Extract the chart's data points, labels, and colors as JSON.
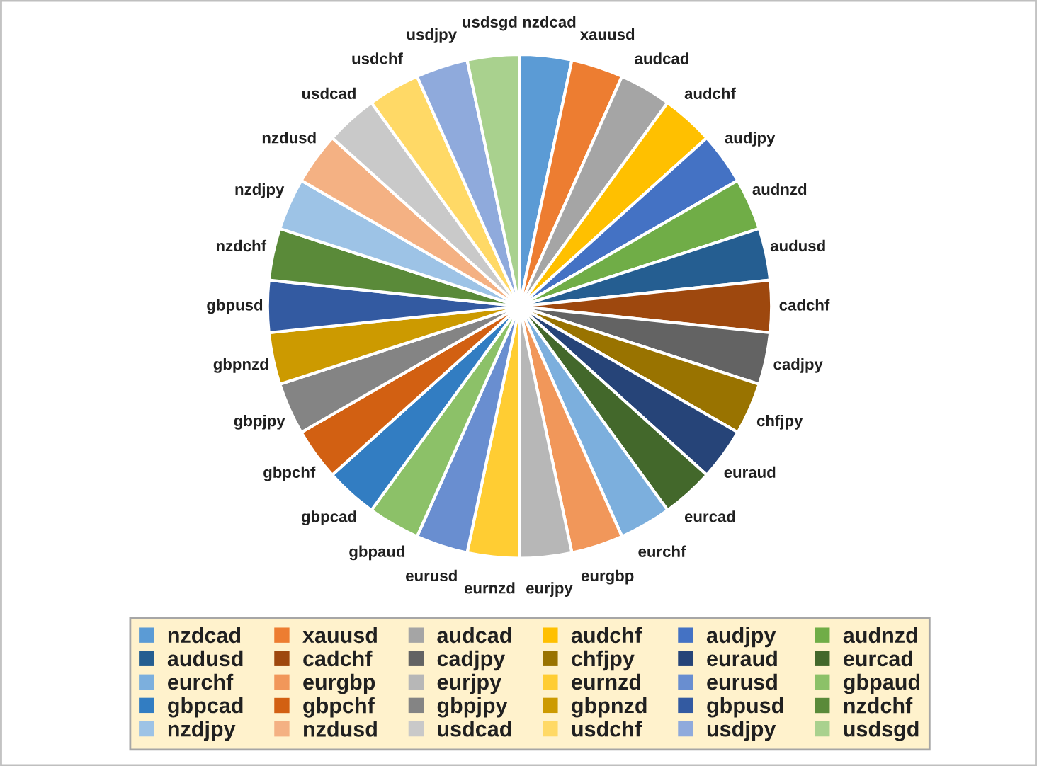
{
  "chart_data": {
    "type": "pie",
    "legend": "bottom",
    "categories": [
      "nzdcad",
      "xauusd",
      "audcad",
      "audchf",
      "audjpy",
      "audnzd",
      "audusd",
      "cadchf",
      "cadjpy",
      "chfjpy",
      "euraud",
      "eurcad",
      "eurchf",
      "eurgbp",
      "eurjpy",
      "eurnzd",
      "eurusd",
      "gbpaud",
      "gbpcad",
      "gbpchf",
      "gbpjpy",
      "gbpnzd",
      "gbpusd",
      "nzdchf",
      "nzdjpy",
      "nzdusd",
      "usdcad",
      "usdchf",
      "usdjpy",
      "usdsgd"
    ],
    "values": [
      3.33,
      3.33,
      3.33,
      3.33,
      3.33,
      3.33,
      3.33,
      3.33,
      3.33,
      3.33,
      3.33,
      3.33,
      3.33,
      3.33,
      3.33,
      3.33,
      3.33,
      3.33,
      3.33,
      3.33,
      3.33,
      3.33,
      3.33,
      3.33,
      3.33,
      3.33,
      3.33,
      3.33,
      3.33,
      3.33
    ],
    "colors": [
      "#5b9bd5",
      "#ed7d31",
      "#a5a5a5",
      "#ffc000",
      "#4472c4",
      "#70ad47",
      "#255e91",
      "#9e480e",
      "#636363",
      "#997300",
      "#264478",
      "#43682b",
      "#7cafdd",
      "#f1975a",
      "#b7b7b7",
      "#ffcd33",
      "#698ed0",
      "#8cc168",
      "#327dc2",
      "#d26012",
      "#848484",
      "#cc9a00",
      "#335aa1",
      "#5a8a39",
      "#9dc3e6",
      "#f4b183",
      "#c9c9c9",
      "#ffd966",
      "#8faadc",
      "#a9d18e"
    ]
  }
}
